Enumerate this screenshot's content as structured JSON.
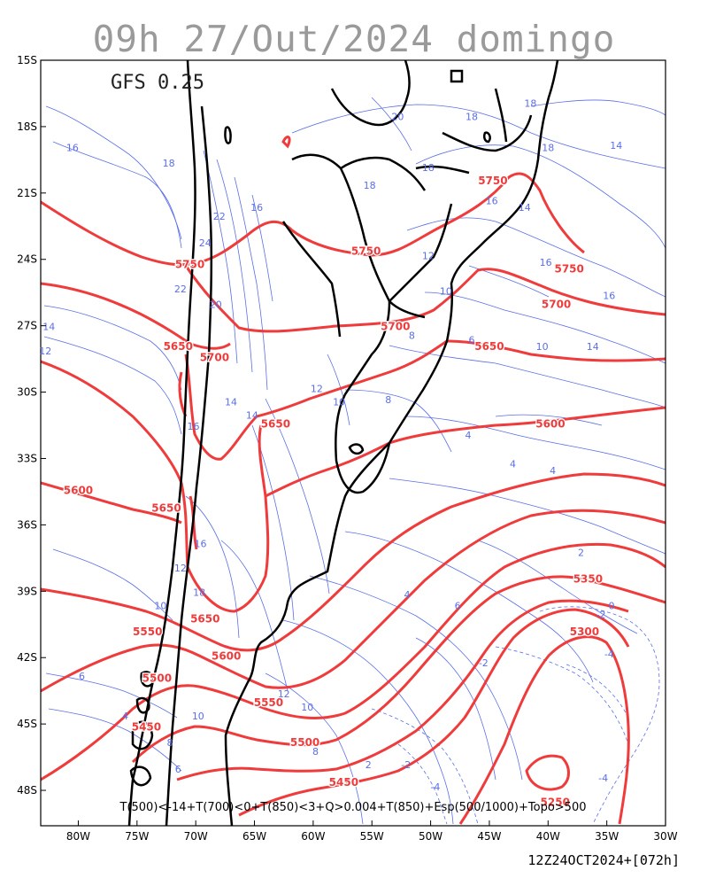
{
  "title": "09h 27/Out/2024 domingo",
  "model": "GFS 0.25",
  "caption": "T(500)<-14+T(700)<0+T(850)<3+Q>0.004+T(850)+Esp(500/1000)+Topo>500",
  "run_info": "12Z24OCT2024+[072h]",
  "colors": {
    "thickness": "#ef3b3b",
    "temperature": "#5b6ee8",
    "borders": "#000000",
    "title": "#9a9a9a"
  },
  "axes": {
    "lon_labels": [
      "80W",
      "75W",
      "70W",
      "65W",
      "60W",
      "55W",
      "50W",
      "45W",
      "40W",
      "35W",
      "30W"
    ],
    "lat_labels": [
      "15S",
      "18S",
      "21S",
      "24S",
      "27S",
      "30S",
      "33S",
      "36S",
      "39S",
      "42S",
      "45S",
      "48S"
    ]
  },
  "thickness_labels": [
    {
      "text": "5750",
      "lon": -70.5,
      "lat": -24.4
    },
    {
      "text": "5750",
      "lon": -55.5,
      "lat": -23.8
    },
    {
      "text": "5750",
      "lon": -44.7,
      "lat": -20.6
    },
    {
      "text": "5750",
      "lon": -38.2,
      "lat": -24.6
    },
    {
      "text": "5700",
      "lon": -39.3,
      "lat": -26.2
    },
    {
      "text": "5700",
      "lon": -53.0,
      "lat": -27.2
    },
    {
      "text": "5700",
      "lon": -68.4,
      "lat": -28.6
    },
    {
      "text": "5650",
      "lon": -71.5,
      "lat": -28.1
    },
    {
      "text": "5650",
      "lon": -63.2,
      "lat": -31.6
    },
    {
      "text": "5650",
      "lon": -45.0,
      "lat": -28.1
    },
    {
      "text": "5650",
      "lon": -72.5,
      "lat": -35.4
    },
    {
      "text": "5650",
      "lon": -69.2,
      "lat": -40.4
    },
    {
      "text": "5600",
      "lon": -80.0,
      "lat": -34.6
    },
    {
      "text": "5600",
      "lon": -39.8,
      "lat": -31.6
    },
    {
      "text": "5600",
      "lon": -67.4,
      "lat": -42.1
    },
    {
      "text": "5550",
      "lon": -74.1,
      "lat": -41.0
    },
    {
      "text": "5550",
      "lon": -63.8,
      "lat": -44.2
    },
    {
      "text": "5500",
      "lon": -73.3,
      "lat": -43.1
    },
    {
      "text": "5500",
      "lon": -60.7,
      "lat": -46.0
    },
    {
      "text": "5450",
      "lon": -74.2,
      "lat": -45.3
    },
    {
      "text": "5450",
      "lon": -57.4,
      "lat": -47.8
    },
    {
      "text": "5350",
      "lon": -36.6,
      "lat": -38.6
    },
    {
      "text": "5300",
      "lon": -36.9,
      "lat": -41.0
    },
    {
      "text": "5250",
      "lon": -39.4,
      "lat": -48.7
    }
  ],
  "temperature_labels": [
    {
      "text": "16",
      "lon": -80.5,
      "lat": -19.1
    },
    {
      "text": "18",
      "lon": -72.3,
      "lat": -19.8
    },
    {
      "text": "22",
      "lon": -68.0,
      "lat": -22.2
    },
    {
      "text": "24",
      "lon": -69.2,
      "lat": -23.4
    },
    {
      "text": "16",
      "lon": -64.8,
      "lat": -21.8
    },
    {
      "text": "20",
      "lon": -52.8,
      "lat": -17.7
    },
    {
      "text": "18",
      "lon": -46.5,
      "lat": -17.7
    },
    {
      "text": "18",
      "lon": -41.5,
      "lat": -17.1
    },
    {
      "text": "18",
      "lon": -40.0,
      "lat": -19.1
    },
    {
      "text": "14",
      "lon": -34.2,
      "lat": -19.0
    },
    {
      "text": "18",
      "lon": -55.2,
      "lat": -20.8
    },
    {
      "text": "18",
      "lon": -50.2,
      "lat": -20.0
    },
    {
      "text": "16",
      "lon": -44.8,
      "lat": -21.5
    },
    {
      "text": "14",
      "lon": -42.0,
      "lat": -21.8
    },
    {
      "text": "12",
      "lon": -50.2,
      "lat": -24.0
    },
    {
      "text": "10",
      "lon": -48.7,
      "lat": -25.6
    },
    {
      "text": "16",
      "lon": -40.2,
      "lat": -24.3
    },
    {
      "text": "16",
      "lon": -34.8,
      "lat": -25.8
    },
    {
      "text": "22",
      "lon": -71.3,
      "lat": -25.5
    },
    {
      "text": "20",
      "lon": -68.3,
      "lat": -26.2
    },
    {
      "text": "14",
      "lon": -82.5,
      "lat": -27.2
    },
    {
      "text": "12",
      "lon": -82.8,
      "lat": -28.3
    },
    {
      "text": "8",
      "lon": -51.6,
      "lat": -27.6
    },
    {
      "text": "6",
      "lon": -46.5,
      "lat": -27.8
    },
    {
      "text": "10",
      "lon": -40.5,
      "lat": -28.1
    },
    {
      "text": "14",
      "lon": -36.2,
      "lat": -28.1
    },
    {
      "text": "12",
      "lon": -59.7,
      "lat": -30.0
    },
    {
      "text": "10",
      "lon": -57.8,
      "lat": -30.6
    },
    {
      "text": "8",
      "lon": -53.6,
      "lat": -30.5
    },
    {
      "text": "14",
      "lon": -67.0,
      "lat": -30.6
    },
    {
      "text": "14",
      "lon": -65.2,
      "lat": -31.2
    },
    {
      "text": "16",
      "lon": -70.2,
      "lat": -31.7
    },
    {
      "text": "4",
      "lon": -46.8,
      "lat": -32.1
    },
    {
      "text": "4",
      "lon": -43.0,
      "lat": -33.4
    },
    {
      "text": "4",
      "lon": -39.6,
      "lat": -33.7
    },
    {
      "text": "16",
      "lon": -69.6,
      "lat": -37.0
    },
    {
      "text": "12",
      "lon": -71.3,
      "lat": -38.1
    },
    {
      "text": "18",
      "lon": -69.7,
      "lat": -39.2
    },
    {
      "text": "10",
      "lon": -73.0,
      "lat": -39.8
    },
    {
      "text": "2",
      "lon": -37.2,
      "lat": -37.4
    },
    {
      "text": "4",
      "lon": -52.0,
      "lat": -39.3
    },
    {
      "text": "6",
      "lon": -47.7,
      "lat": -39.8
    },
    {
      "text": "0",
      "lon": -34.6,
      "lat": -39.8
    },
    {
      "text": "-2",
      "lon": -35.5,
      "lat": -40.2
    },
    {
      "text": "-2",
      "lon": -45.5,
      "lat": -42.4
    },
    {
      "text": "-4",
      "lon": -34.8,
      "lat": -42.0
    },
    {
      "text": "6",
      "lon": -79.7,
      "lat": -43.0
    },
    {
      "text": "4",
      "lon": -76.0,
      "lat": -44.8
    },
    {
      "text": "10",
      "lon": -69.8,
      "lat": -44.8
    },
    {
      "text": "12",
      "lon": -62.5,
      "lat": -43.8
    },
    {
      "text": "10",
      "lon": -60.5,
      "lat": -44.4
    },
    {
      "text": "8",
      "lon": -59.8,
      "lat": -46.4
    },
    {
      "text": "2",
      "lon": -55.3,
      "lat": -47.0
    },
    {
      "text": "-2",
      "lon": -52.1,
      "lat": -47.0
    },
    {
      "text": "-4",
      "lon": -49.6,
      "lat": -48.0
    },
    {
      "text": "-4",
      "lon": -35.3,
      "lat": -47.6
    },
    {
      "text": "8",
      "lon": -72.2,
      "lat": -46.0
    },
    {
      "text": "6",
      "lon": -71.5,
      "lat": -47.2
    }
  ]
}
